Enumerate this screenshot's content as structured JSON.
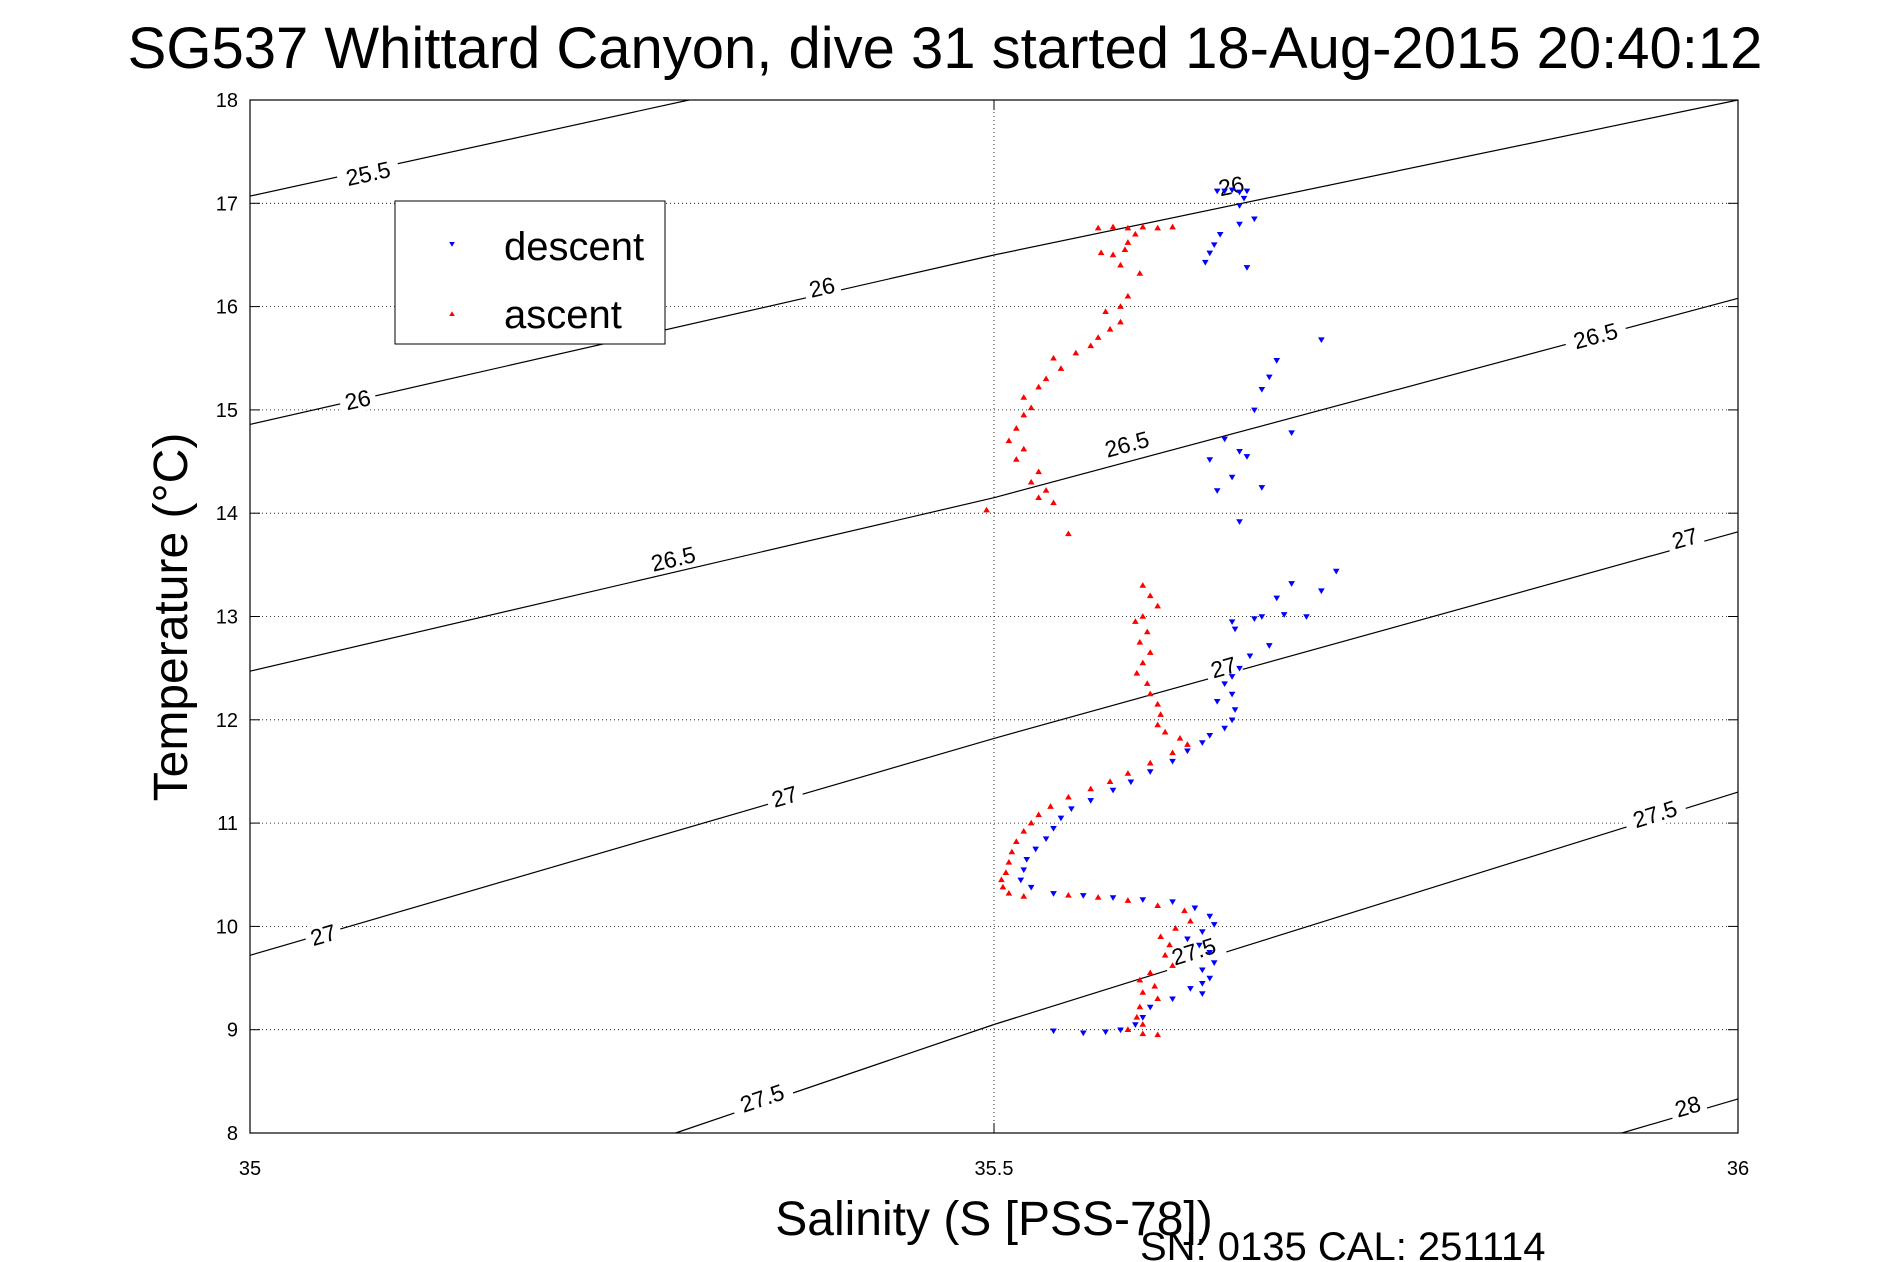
{
  "chart_data": {
    "type": "scatter",
    "title": "SG537 Whittard Canyon, dive 31 started 18-Aug-2015 20:40:12",
    "xlabel": "Salinity (S [PSS-78])",
    "ylabel": "Temperature (°C)",
    "xlim": [
      35,
      36
    ],
    "ylim": [
      8,
      18
    ],
    "x_ticks": [
      "35",
      "35.5",
      "36"
    ],
    "y_ticks": [
      "8",
      "9",
      "10",
      "11",
      "12",
      "13",
      "14",
      "15",
      "16",
      "17",
      "18"
    ],
    "grid": true,
    "legend_position": "top-left",
    "footnote": "SN: 0135  CAL: 251114",
    "density_contours": [
      {
        "level": 25.5,
        "points": [
          [
            35.0,
            17.07
          ],
          [
            35.295,
            18.0
          ]
        ]
      },
      {
        "level": 26,
        "points": [
          [
            35.0,
            14.86
          ],
          [
            35.5,
            16.5
          ],
          [
            36.0,
            18.0
          ]
        ]
      },
      {
        "level": 26.5,
        "points": [
          [
            35.0,
            12.47
          ],
          [
            35.5,
            14.15
          ],
          [
            36.0,
            16.08
          ]
        ]
      },
      {
        "level": 27,
        "points": [
          [
            35.0,
            9.72
          ],
          [
            35.5,
            11.82
          ],
          [
            36.0,
            13.82
          ]
        ]
      },
      {
        "level": 27.5,
        "points": [
          [
            35.286,
            8.0
          ],
          [
            35.5,
            9.05
          ],
          [
            36.0,
            11.3
          ]
        ]
      },
      {
        "level": 28,
        "points": [
          [
            35.922,
            8.0
          ],
          [
            36.0,
            8.33
          ]
        ]
      }
    ],
    "contour_labels": [
      {
        "text": "25.5",
        "s": 35.08,
        "t": 17.25
      },
      {
        "text": "26",
        "s": 35.66,
        "t": 17.13
      },
      {
        "text": "26",
        "s": 35.385,
        "t": 16.15
      },
      {
        "text": "26",
        "s": 35.073,
        "t": 15.06
      },
      {
        "text": "26.5",
        "s": 35.905,
        "t": 15.68
      },
      {
        "text": "26.5",
        "s": 35.59,
        "t": 14.63
      },
      {
        "text": "26.5",
        "s": 35.285,
        "t": 13.52
      },
      {
        "text": "27",
        "s": 35.965,
        "t": 13.72
      },
      {
        "text": "27",
        "s": 35.655,
        "t": 12.47
      },
      {
        "text": "27",
        "s": 35.36,
        "t": 11.22
      },
      {
        "text": "27",
        "s": 35.05,
        "t": 9.88
      },
      {
        "text": "27.5",
        "s": 35.945,
        "t": 11.05
      },
      {
        "text": "27.5",
        "s": 35.635,
        "t": 9.72
      },
      {
        "text": "27.5",
        "s": 35.345,
        "t": 8.3
      },
      {
        "text": "28",
        "s": 35.967,
        "t": 8.22
      }
    ],
    "series": [
      {
        "name": "descent",
        "color": "#0000ff",
        "marker": "triangle-down",
        "points": [
          [
            35.65,
            17.12
          ],
          [
            35.655,
            17.12
          ],
          [
            35.66,
            17.13
          ],
          [
            35.665,
            17.11
          ],
          [
            35.67,
            17.12
          ],
          [
            35.668,
            17.05
          ],
          [
            35.665,
            16.98
          ],
          [
            35.675,
            16.85
          ],
          [
            35.665,
            16.8
          ],
          [
            35.652,
            16.7
          ],
          [
            35.648,
            16.6
          ],
          [
            35.645,
            16.52
          ],
          [
            35.642,
            16.43
          ],
          [
            35.67,
            16.38
          ],
          [
            35.72,
            15.68
          ],
          [
            35.69,
            15.48
          ],
          [
            35.685,
            15.32
          ],
          [
            35.68,
            15.2
          ],
          [
            35.675,
            15.0
          ],
          [
            35.7,
            14.78
          ],
          [
            35.655,
            14.72
          ],
          [
            35.665,
            14.6
          ],
          [
            35.67,
            14.55
          ],
          [
            35.645,
            14.52
          ],
          [
            35.66,
            14.35
          ],
          [
            35.65,
            14.22
          ],
          [
            35.68,
            14.25
          ],
          [
            35.665,
            13.92
          ],
          [
            35.73,
            13.44
          ],
          [
            35.7,
            13.32
          ],
          [
            35.72,
            13.25
          ],
          [
            35.69,
            13.18
          ],
          [
            35.695,
            13.02
          ],
          [
            35.71,
            13.0
          ],
          [
            35.68,
            13.0
          ],
          [
            35.675,
            12.98
          ],
          [
            35.66,
            12.95
          ],
          [
            35.662,
            12.88
          ],
          [
            35.685,
            12.72
          ],
          [
            35.672,
            12.62
          ],
          [
            35.665,
            12.5
          ],
          [
            35.66,
            12.42
          ],
          [
            35.655,
            12.35
          ],
          [
            35.66,
            12.25
          ],
          [
            35.65,
            12.18
          ],
          [
            35.662,
            12.1
          ],
          [
            35.66,
            12.0
          ],
          [
            35.655,
            11.92
          ],
          [
            35.645,
            11.85
          ],
          [
            35.64,
            11.78
          ],
          [
            35.63,
            11.7
          ],
          [
            35.62,
            11.6
          ],
          [
            35.605,
            11.5
          ],
          [
            35.592,
            11.4
          ],
          [
            35.58,
            11.32
          ],
          [
            35.565,
            11.22
          ],
          [
            35.552,
            11.14
          ],
          [
            35.545,
            11.05
          ],
          [
            35.54,
            10.95
          ],
          [
            35.535,
            10.85
          ],
          [
            35.528,
            10.75
          ],
          [
            35.522,
            10.65
          ],
          [
            35.52,
            10.55
          ],
          [
            35.518,
            10.45
          ],
          [
            35.525,
            10.38
          ],
          [
            35.54,
            10.32
          ],
          [
            35.56,
            10.3
          ],
          [
            35.58,
            10.28
          ],
          [
            35.6,
            10.26
          ],
          [
            35.62,
            10.24
          ],
          [
            35.635,
            10.18
          ],
          [
            35.645,
            10.1
          ],
          [
            35.648,
            10.02
          ],
          [
            35.64,
            9.95
          ],
          [
            35.63,
            9.88
          ],
          [
            35.638,
            9.82
          ],
          [
            35.645,
            9.75
          ],
          [
            35.648,
            9.65
          ],
          [
            35.64,
            9.58
          ],
          [
            35.645,
            9.5
          ],
          [
            35.64,
            9.45
          ],
          [
            35.632,
            9.4
          ],
          [
            35.64,
            9.35
          ],
          [
            35.62,
            9.3
          ],
          [
            35.605,
            9.22
          ],
          [
            35.6,
            9.12
          ],
          [
            35.595,
            9.05
          ],
          [
            35.585,
            9.0
          ],
          [
            35.575,
            8.98
          ],
          [
            35.56,
            8.97
          ],
          [
            35.54,
            8.99
          ]
        ]
      },
      {
        "name": "ascent",
        "color": "#ff0000",
        "marker": "triangle-up",
        "points": [
          [
            35.57,
            16.76
          ],
          [
            35.58,
            16.77
          ],
          [
            35.59,
            16.76
          ],
          [
            35.6,
            16.77
          ],
          [
            35.61,
            16.76
          ],
          [
            35.62,
            16.77
          ],
          [
            35.595,
            16.7
          ],
          [
            35.59,
            16.62
          ],
          [
            35.588,
            16.55
          ],
          [
            35.58,
            16.5
          ],
          [
            35.572,
            16.52
          ],
          [
            35.585,
            16.4
          ],
          [
            35.598,
            16.32
          ],
          [
            35.59,
            16.1
          ],
          [
            35.585,
            16.0
          ],
          [
            35.575,
            15.95
          ],
          [
            35.585,
            15.85
          ],
          [
            35.578,
            15.78
          ],
          [
            35.57,
            15.7
          ],
          [
            35.565,
            15.62
          ],
          [
            35.555,
            15.55
          ],
          [
            35.54,
            15.5
          ],
          [
            35.545,
            15.4
          ],
          [
            35.535,
            15.3
          ],
          [
            35.53,
            15.22
          ],
          [
            35.52,
            15.12
          ],
          [
            35.525,
            15.02
          ],
          [
            35.52,
            14.95
          ],
          [
            35.515,
            14.82
          ],
          [
            35.51,
            14.7
          ],
          [
            35.52,
            14.62
          ],
          [
            35.515,
            14.52
          ],
          [
            35.53,
            14.4
          ],
          [
            35.525,
            14.3
          ],
          [
            35.535,
            14.22
          ],
          [
            35.53,
            14.15
          ],
          [
            35.54,
            14.1
          ],
          [
            35.495,
            14.03
          ],
          [
            35.55,
            13.8
          ],
          [
            35.6,
            13.3
          ],
          [
            35.605,
            13.2
          ],
          [
            35.61,
            13.1
          ],
          [
            35.6,
            13.0
          ],
          [
            35.595,
            12.95
          ],
          [
            35.603,
            12.85
          ],
          [
            35.598,
            12.75
          ],
          [
            35.605,
            12.65
          ],
          [
            35.6,
            12.55
          ],
          [
            35.596,
            12.45
          ],
          [
            35.603,
            12.35
          ],
          [
            35.605,
            12.25
          ],
          [
            35.61,
            12.15
          ],
          [
            35.612,
            12.05
          ],
          [
            35.61,
            11.95
          ],
          [
            35.615,
            11.88
          ],
          [
            35.625,
            11.82
          ],
          [
            35.63,
            11.76
          ],
          [
            35.62,
            11.68
          ],
          [
            35.605,
            11.58
          ],
          [
            35.59,
            11.48
          ],
          [
            35.578,
            11.4
          ],
          [
            35.565,
            11.33
          ],
          [
            35.55,
            11.25
          ],
          [
            35.538,
            11.16
          ],
          [
            35.53,
            11.08
          ],
          [
            35.525,
            11.0
          ],
          [
            35.52,
            10.92
          ],
          [
            35.515,
            10.82
          ],
          [
            35.512,
            10.72
          ],
          [
            35.51,
            10.62
          ],
          [
            35.508,
            10.52
          ],
          [
            35.505,
            10.45
          ],
          [
            35.506,
            10.38
          ],
          [
            35.51,
            10.32
          ],
          [
            35.52,
            10.29
          ],
          [
            35.55,
            10.3
          ],
          [
            35.57,
            10.28
          ],
          [
            35.59,
            10.25
          ],
          [
            35.61,
            10.2
          ],
          [
            35.628,
            10.15
          ],
          [
            35.632,
            10.05
          ],
          [
            35.622,
            9.98
          ],
          [
            35.612,
            9.9
          ],
          [
            35.618,
            9.82
          ],
          [
            35.615,
            9.72
          ],
          [
            35.62,
            9.62
          ],
          [
            35.605,
            9.55
          ],
          [
            35.598,
            9.48
          ],
          [
            35.608,
            9.42
          ],
          [
            35.6,
            9.36
          ],
          [
            35.61,
            9.3
          ],
          [
            35.598,
            9.22
          ],
          [
            35.596,
            9.12
          ],
          [
            35.6,
            9.05
          ],
          [
            35.59,
            9.0
          ],
          [
            35.6,
            8.96
          ],
          [
            35.61,
            8.95
          ]
        ]
      }
    ]
  }
}
